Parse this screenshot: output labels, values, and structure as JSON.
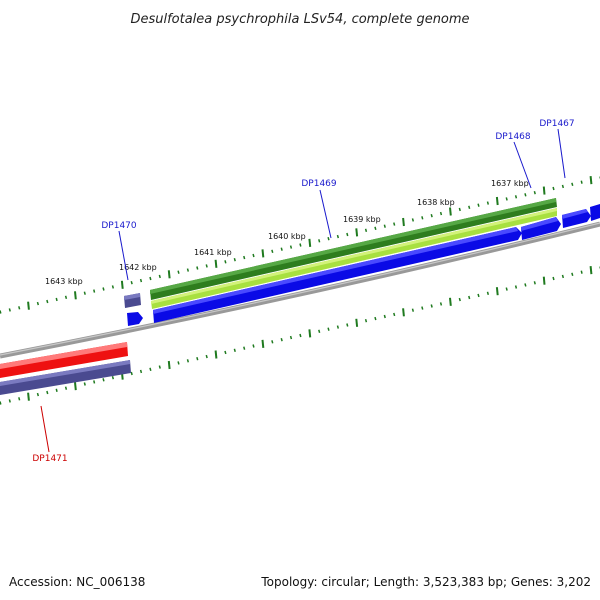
{
  "title": "Desulfotalea psychrophila LSv54, complete genome",
  "footer": {
    "accession": "Accession: NC_006138",
    "summary": "Topology: circular; Length: 3,523,383 bp; Genes: 3,202"
  },
  "tick_labels": [
    "1643 kbp",
    "1642 kbp",
    "1641 kbp",
    "1640 kbp",
    "1639 kbp",
    "1638 kbp",
    "1637 kbp"
  ],
  "gene_labels": {
    "dp1470": "DP1470",
    "dp1469": "DP1469",
    "dp1468": "DP1468",
    "dp1467": "DP1467",
    "dp1471": "DP1471"
  },
  "colors": {
    "forward_label": "#1a1acc",
    "reverse_label": "#cc0000",
    "cds_blue": "#0a0ae6",
    "trna_green": "#2e7d1e",
    "light_green": "#a8e040",
    "red_feature": "#ee1111",
    "slate_feature": "#4a4a90",
    "backbone": "#8a8a8a",
    "tick_green": "#1f7a1f"
  }
}
